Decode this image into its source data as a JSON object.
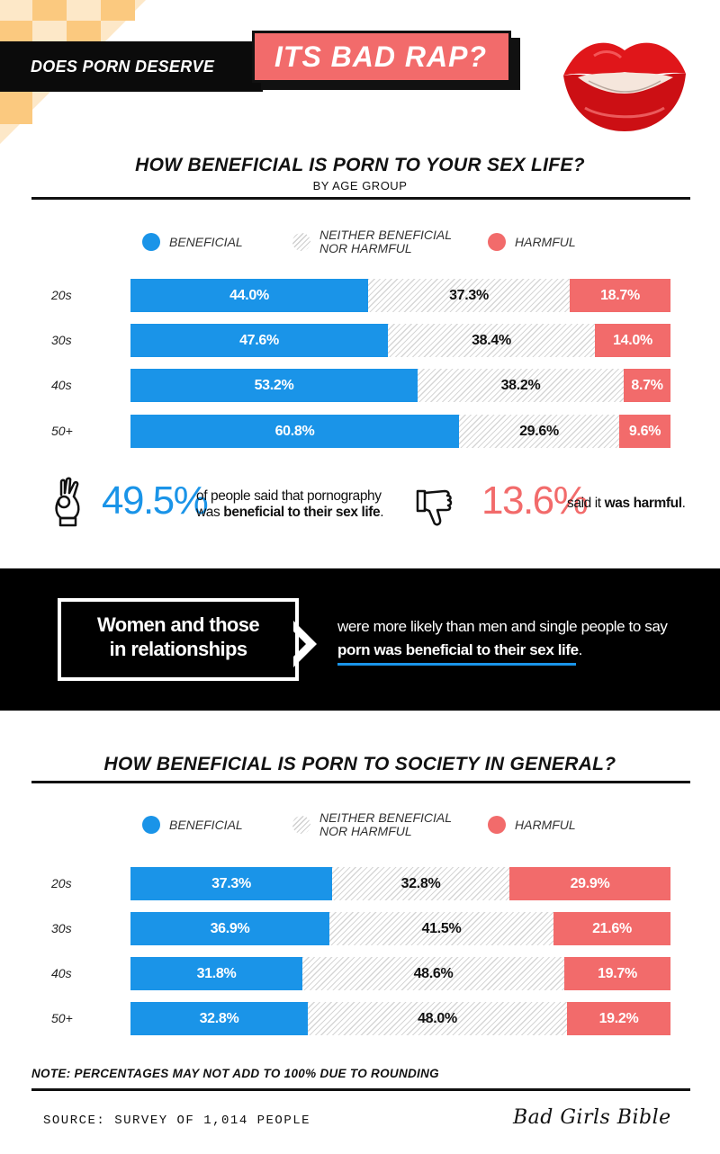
{
  "header": {
    "title_part1": "DOES PORN DESERVE",
    "title_part2": "ITS BAD RAP?"
  },
  "legend": {
    "beneficial": "BENEFICIAL",
    "neither_line1": "NEITHER BENEFICIAL",
    "neither_line2": "NOR HARMFUL",
    "harmful": "HARMFUL"
  },
  "colors": {
    "beneficial": "#1a94e8",
    "harmful": "#f26b6b",
    "neither": "#d6d6d6"
  },
  "chart_data": [
    {
      "type": "bar",
      "orientation": "horizontal-stacked",
      "title": "HOW BENEFICIAL IS PORN TO YOUR SEX LIFE?",
      "subtitle": "BY AGE GROUP",
      "categories": [
        "20s",
        "30s",
        "40s",
        "50+"
      ],
      "series": [
        {
          "name": "BENEFICIAL",
          "values": [
            44.0,
            47.6,
            53.2,
            60.8
          ]
        },
        {
          "name": "NEITHER BENEFICIAL NOR HARMFUL",
          "values": [
            37.3,
            38.4,
            38.2,
            29.6
          ]
        },
        {
          "name": "HARMFUL",
          "values": [
            18.7,
            14.0,
            8.7,
            9.6
          ]
        }
      ],
      "labels": [
        [
          "44.0%",
          "37.3%",
          "18.7%"
        ],
        [
          "47.6%",
          "38.4%",
          "14.0%"
        ],
        [
          "53.2%",
          "38.2%",
          "8.7%"
        ],
        [
          "60.8%",
          "29.6%",
          "9.6%"
        ]
      ],
      "legend": "top"
    },
    {
      "type": "bar",
      "orientation": "horizontal-stacked",
      "title": "HOW BENEFICIAL IS PORN TO SOCIETY IN GENERAL?",
      "categories": [
        "20s",
        "30s",
        "40s",
        "50+"
      ],
      "series": [
        {
          "name": "BENEFICIAL",
          "values": [
            37.3,
            36.9,
            31.8,
            32.8
          ]
        },
        {
          "name": "NEITHER BENEFICIAL NOR HARMFUL",
          "values": [
            32.8,
            41.5,
            48.6,
            48.0
          ]
        },
        {
          "name": "HARMFUL",
          "values": [
            29.9,
            21.6,
            19.7,
            19.2
          ]
        }
      ],
      "labels": [
        [
          "37.3%",
          "32.8%",
          "29.9%"
        ],
        [
          "36.9%",
          "41.5%",
          "21.6%"
        ],
        [
          "31.8%",
          "48.6%",
          "19.7%"
        ],
        [
          "32.8%",
          "48.0%",
          "19.2%"
        ]
      ],
      "legend": "top"
    }
  ],
  "stats": {
    "beneficial_value": "49.5%",
    "beneficial_line1": "of people said that pornography",
    "beneficial_line2_pre": "was ",
    "beneficial_line2_bold": "beneficial to their sex life",
    "beneficial_line2_post": ".",
    "harmful_value": "13.6%",
    "harmful_pre": "said it ",
    "harmful_bold": "was harmful",
    "harmful_post": "."
  },
  "band": {
    "box_line1": "Women and those",
    "box_line2": "in relationships",
    "text_line1": "were more likely than men and single people to say",
    "text_line2_bold": "porn was beneficial to their sex life",
    "text_line2_post": "."
  },
  "footer": {
    "note": "NOTE: PERCENTAGES MAY NOT ADD TO 100% DUE TO ROUNDING",
    "source": "SOURCE: SURVEY OF 1,014 PEOPLE",
    "brand": "Bad Girls Bible"
  },
  "icons": {
    "ok_hand": "ok-hand-icon",
    "thumbs_down": "thumbs-down-icon",
    "lips": "lips-icon"
  }
}
